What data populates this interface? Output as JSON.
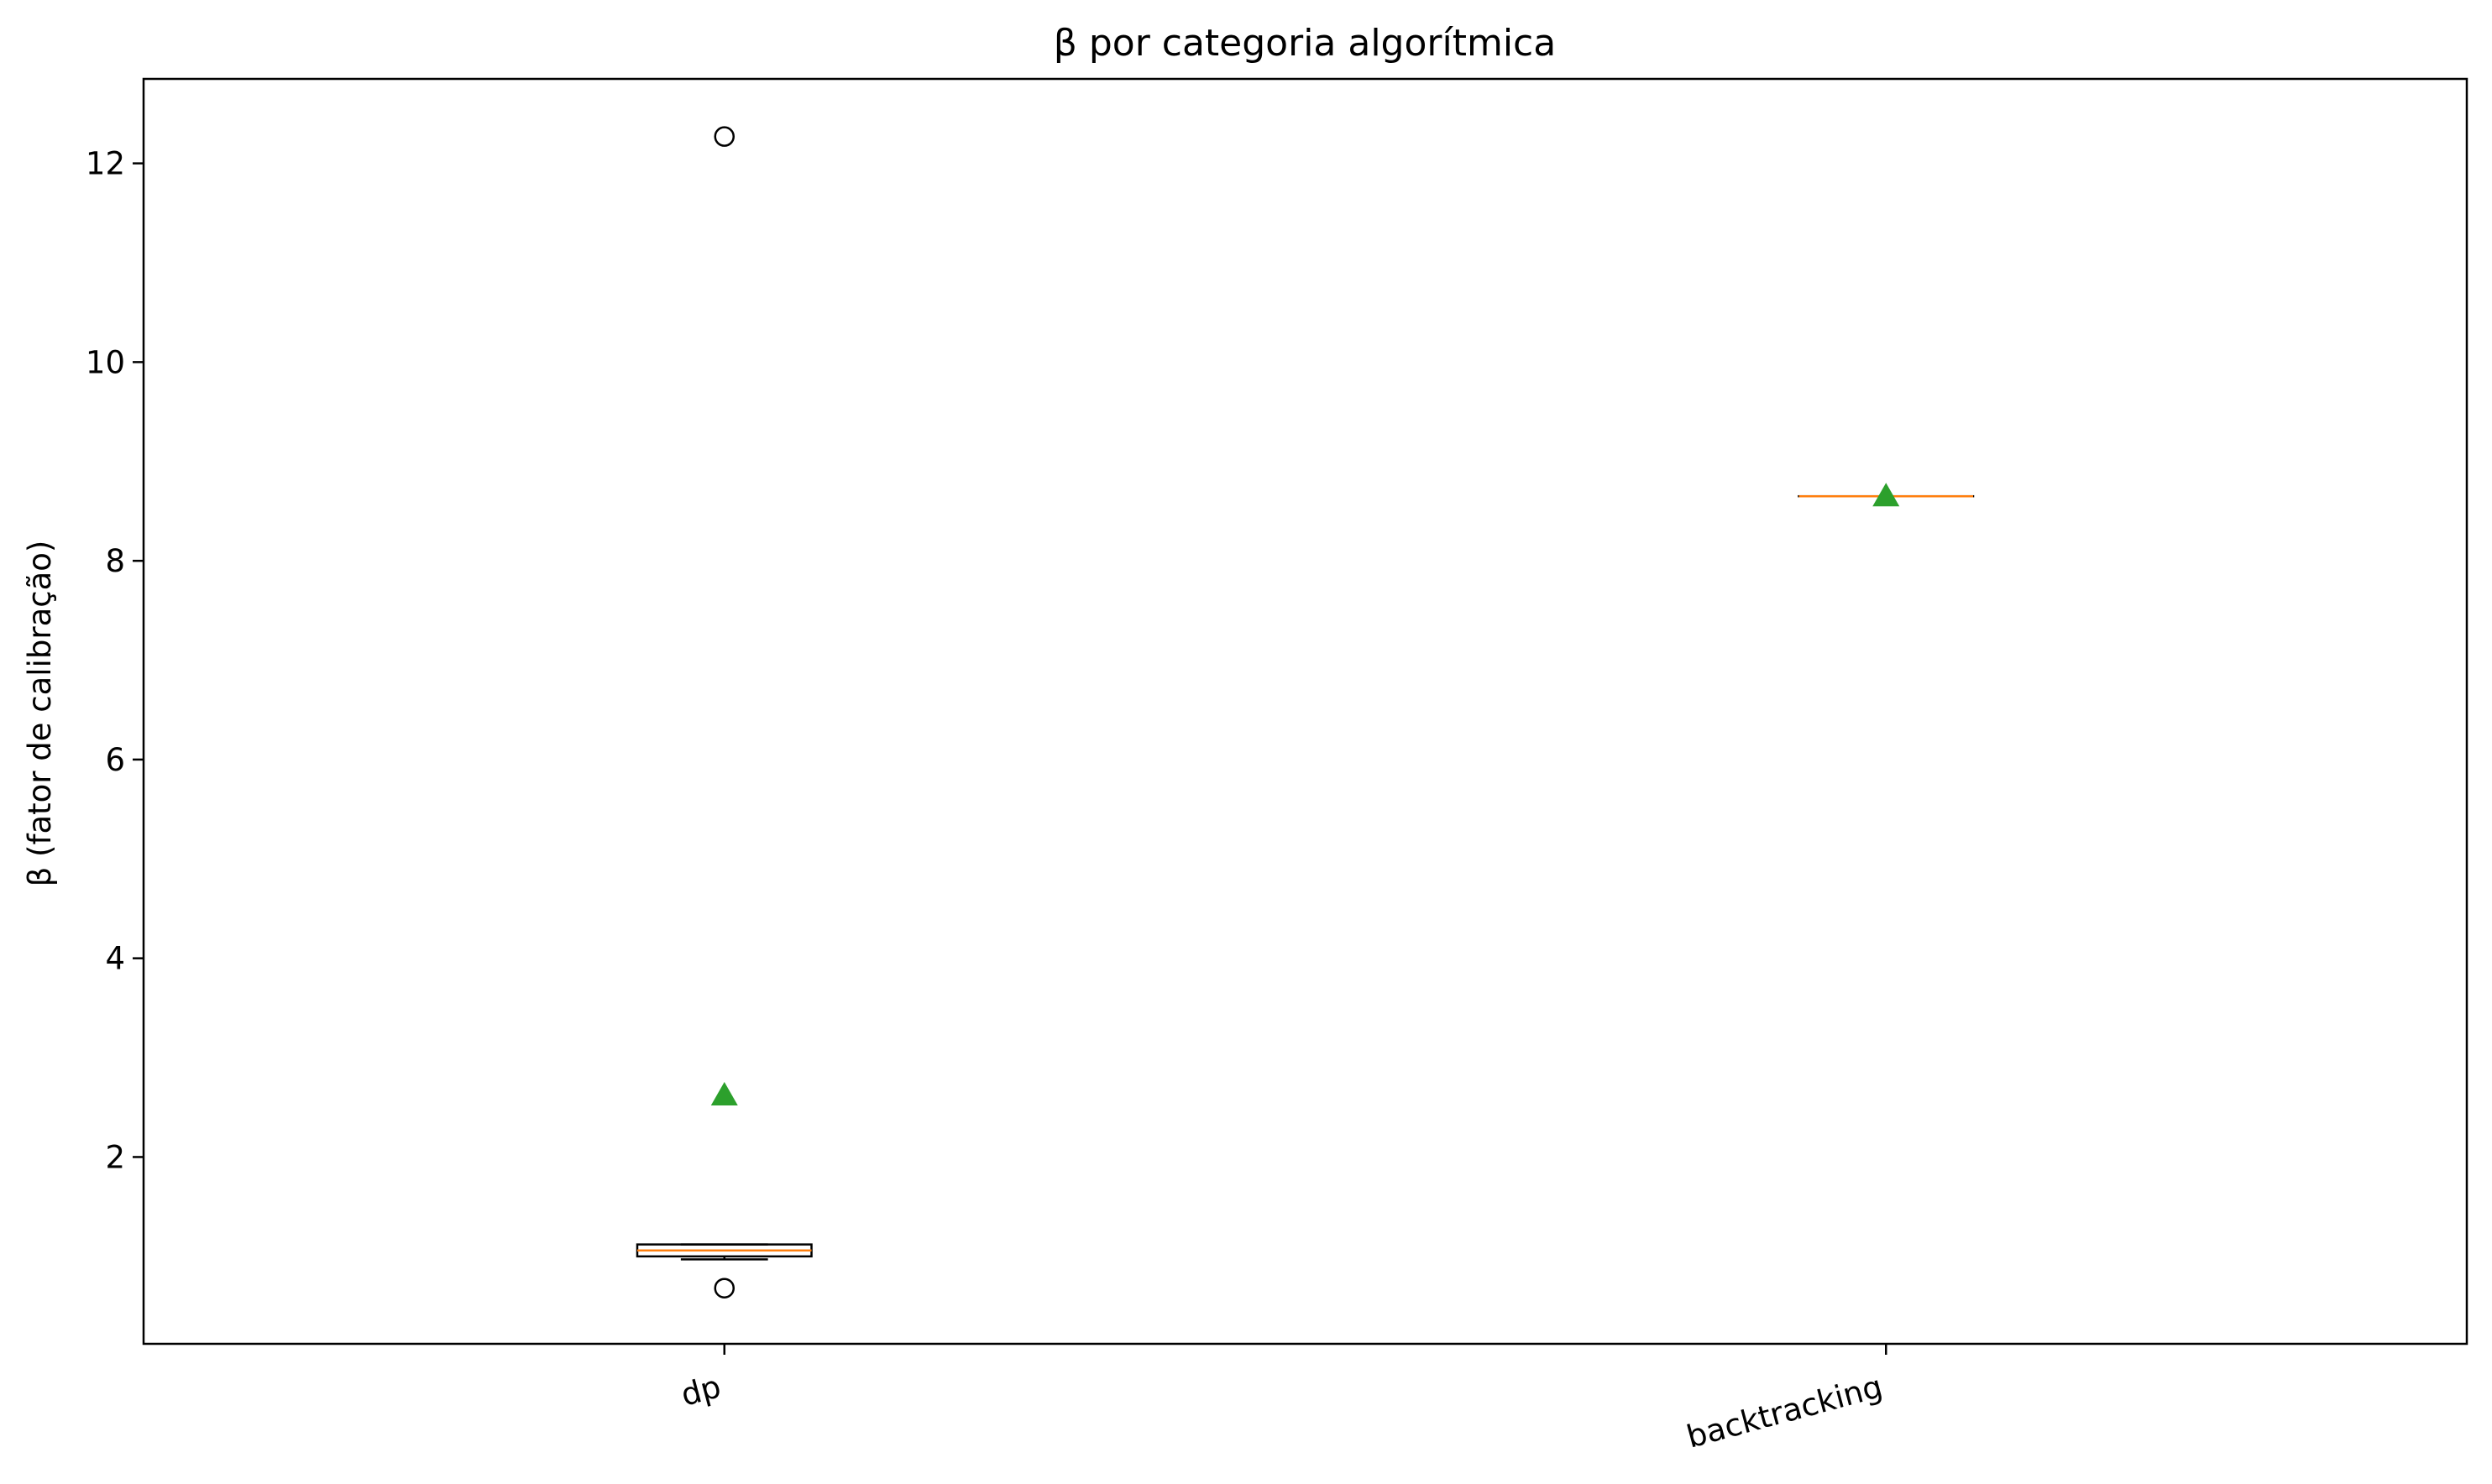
{
  "chart_data": {
    "type": "box",
    "title": "β por categoria algorítmica",
    "xlabel": "",
    "ylabel": "β (fator de calibração)",
    "ylim": [
      0.12,
      12.85
    ],
    "yticks": [
      2,
      4,
      6,
      8,
      10,
      12
    ],
    "ytick_labels": [
      "2",
      "4",
      "6",
      "8",
      "10",
      "12"
    ],
    "categories": [
      "dp",
      "backtracking"
    ],
    "xtick_rotation_deg": -15,
    "grid": false,
    "legend": "none",
    "boxes": [
      {
        "category": "dp",
        "whisker_low": 0.97,
        "q1": 1.0,
        "median": 1.06,
        "q3": 1.12,
        "whisker_high": 1.12,
        "mean": 2.62,
        "outliers": [
          12.27,
          0.68
        ]
      },
      {
        "category": "backtracking",
        "whisker_low": 8.65,
        "q1": 8.65,
        "median": 8.65,
        "q3": 8.65,
        "whisker_high": 8.65,
        "mean": 8.65,
        "outliers": []
      }
    ],
    "colors": {
      "box": "#000000",
      "median": "#ff7f0e",
      "mean": "#2ca02c",
      "outlier": "#000000"
    }
  }
}
